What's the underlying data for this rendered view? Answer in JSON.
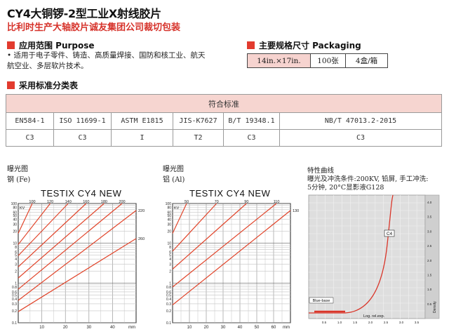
{
  "header": {
    "title": "CY4大铜锣-2型工业X射线胶片",
    "subtitle": "比利时生产大轴胶片诚友集团公司裁切包装"
  },
  "purpose": {
    "heading": "应用范围 Purpose",
    "text_line1": "•  适用于电子零件、铸造、高质量焊接、国防和核工业、航天",
    "text_line2": "航空业、多层软片技术。"
  },
  "packaging": {
    "heading": "主要规格尺寸 Packaging",
    "cells": [
      "14in.×17in.",
      "100张",
      "4盒/箱"
    ]
  },
  "standards": {
    "heading": "采用标准分类表",
    "table_title": "符合标准",
    "names": [
      "EN584-1",
      "ISO 11699-1",
      "ASTM E1815",
      "JIS-K7627",
      "B/T 19348.1",
      "NB/T 47013.2-2015"
    ],
    "classes": [
      "C3",
      "C3",
      "I",
      "T2",
      "C3",
      "C3"
    ]
  },
  "chart_fe": {
    "caption1": "曝光图",
    "caption2": "钢 (Fe)",
    "title": "TESTIX CY4 NEW",
    "kv_label": "KV",
    "unit": "mm",
    "top_ticks": [
      "100",
      "120",
      "140",
      "160",
      "180",
      "200"
    ],
    "right_ticks": [
      "220",
      "260"
    ],
    "x_ticks": [
      "10",
      "20",
      "30",
      "40"
    ],
    "y_ticks": [
      "100",
      "80",
      "60",
      "50",
      "40",
      "30",
      "20",
      "10",
      "8",
      "6",
      "5",
      "4",
      "3",
      "2",
      "1",
      "0.8",
      "0.6",
      "0.5",
      "0.4",
      "0.3",
      "0.2",
      "0.1"
    ]
  },
  "chart_al": {
    "caption1": "曝光图",
    "caption2": "铝 (Al)",
    "title": "TESTIX CY4 NEW",
    "kv_label": "KV",
    "unit": "mm",
    "top_ticks": [
      "50",
      "70",
      "90",
      "110"
    ],
    "right_ticks": [
      "130"
    ],
    "x_ticks": [
      "10",
      "20",
      "30",
      "40",
      "50",
      "60"
    ],
    "y_ticks": [
      "100",
      "80",
      "60",
      "50",
      "40",
      "30",
      "20",
      "10",
      "8",
      "6",
      "5",
      "4",
      "3",
      "2",
      "1",
      "0.8",
      "0.6",
      "0.5",
      "0.4",
      "0.3",
      "0.2",
      "0.1"
    ]
  },
  "char_curve": {
    "heading": "特性曲线",
    "cond_line1": "曝光及冲洗条件:200KV, 铅屏, 手工冲洗:",
    "cond_line2": "5分钟, 20°C显影液G128",
    "curve_label": "C4",
    "base_label": "Blue-base",
    "x_label": "Log. rel.exp.",
    "y_label": "Density",
    "x_ticks": [
      "0.5",
      "1.0",
      "1.5",
      "2.0",
      "2.5",
      "3.0",
      "3.5"
    ],
    "y_ticks": [
      "4.0",
      "3.5",
      "3.0",
      "2.5",
      "2.0",
      "1.5",
      "1.0",
      "0.5"
    ]
  }
}
